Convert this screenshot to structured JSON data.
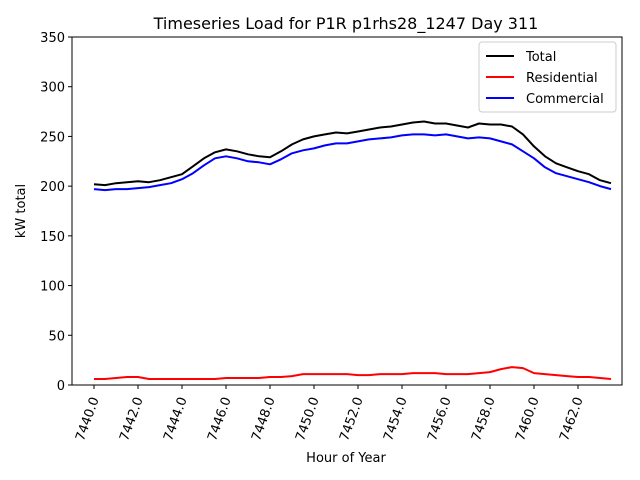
{
  "chart_data": {
    "type": "line",
    "title": "Timeseries Load for P1R p1rhs28_1247  Day 311",
    "xlabel": "Hour of Year",
    "ylabel": "kW total",
    "xlim": [
      7439.0,
      7464.0
    ],
    "ylim": [
      0,
      350
    ],
    "x_ticks": [
      7440.0,
      7442.0,
      7444.0,
      7446.0,
      7448.0,
      7450.0,
      7452.0,
      7454.0,
      7456.0,
      7458.0,
      7460.0,
      7462.0
    ],
    "x_tick_labels": [
      "7440.0",
      "7442.0",
      "7444.0",
      "7446.0",
      "7448.0",
      "7450.0",
      "7452.0",
      "7454.0",
      "7456.0",
      "7458.0",
      "7460.0",
      "7462.0"
    ],
    "y_ticks": [
      0,
      50,
      100,
      150,
      200,
      250,
      300,
      350
    ],
    "y_tick_labels": [
      "0",
      "50",
      "100",
      "150",
      "200",
      "250",
      "300",
      "350"
    ],
    "legend_position": "top-right",
    "grid": false,
    "x": [
      7440.0,
      7440.5,
      7441.0,
      7441.5,
      7442.0,
      7442.5,
      7443.0,
      7443.5,
      7444.0,
      7444.5,
      7445.0,
      7445.5,
      7446.0,
      7446.5,
      7447.0,
      7447.5,
      7448.0,
      7448.5,
      7449.0,
      7449.5,
      7450.0,
      7450.5,
      7451.0,
      7451.5,
      7452.0,
      7452.5,
      7453.0,
      7453.5,
      7454.0,
      7454.5,
      7455.0,
      7455.5,
      7456.0,
      7456.5,
      7457.0,
      7457.5,
      7458.0,
      7458.5,
      7459.0,
      7459.5,
      7460.0,
      7460.5,
      7461.0,
      7461.5,
      7462.0,
      7462.5,
      7463.0,
      7463.5
    ],
    "series": [
      {
        "name": "Total",
        "color": "#000000",
        "values": [
          202,
          201,
          203,
          204,
          205,
          204,
          206,
          209,
          212,
          220,
          228,
          234,
          237,
          235,
          232,
          230,
          229,
          235,
          242,
          247,
          250,
          252,
          254,
          253,
          255,
          257,
          259,
          260,
          262,
          264,
          265,
          263,
          263,
          261,
          259,
          263,
          262,
          262,
          260,
          252,
          240,
          230,
          223,
          219,
          215,
          212,
          206,
          203
        ]
      },
      {
        "name": "Residential",
        "color": "#ff0000",
        "values": [
          6,
          6,
          7,
          8,
          8,
          6,
          6,
          6,
          6,
          6,
          6,
          6,
          7,
          7,
          7,
          7,
          8,
          8,
          9,
          11,
          11,
          11,
          11,
          11,
          10,
          10,
          11,
          11,
          11,
          12,
          12,
          12,
          11,
          11,
          11,
          12,
          13,
          16,
          18,
          17,
          12,
          11,
          10,
          9,
          8,
          8,
          7,
          6
        ]
      },
      {
        "name": "Commercial",
        "color": "#0000ff",
        "values": [
          197,
          196,
          197,
          197,
          198,
          199,
          201,
          203,
          207,
          213,
          221,
          228,
          230,
          228,
          225,
          224,
          222,
          227,
          233,
          236,
          238,
          241,
          243,
          243,
          245,
          247,
          248,
          249,
          251,
          252,
          252,
          251,
          252,
          250,
          248,
          249,
          248,
          245,
          242,
          235,
          228,
          219,
          213,
          210,
          207,
          204,
          200,
          197
        ]
      }
    ]
  }
}
